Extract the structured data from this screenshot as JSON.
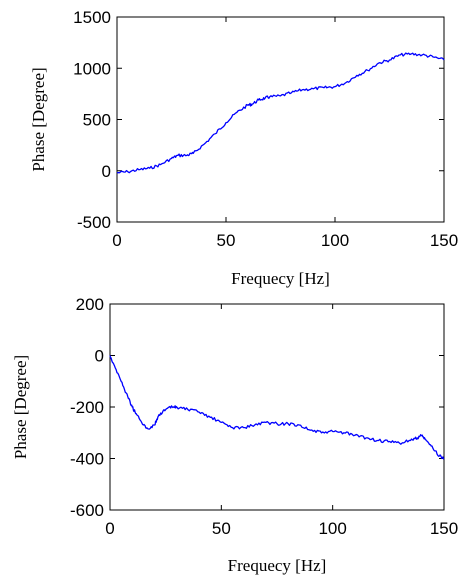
{
  "chart_data": [
    {
      "type": "line",
      "title": "",
      "xlabel": "Frequecy [Hz]",
      "ylabel": "Phase [Degree]",
      "xlim": [
        0,
        150
      ],
      "ylim": [
        -500,
        1500
      ],
      "xticks": [
        "0",
        "50",
        "100",
        "150"
      ],
      "yticks": [
        "1500",
        "1000",
        "500",
        "0",
        "-500"
      ],
      "grid": false,
      "series": [
        {
          "color": "#0000ff",
          "x": [
            0,
            5,
            10,
            15,
            20,
            25,
            28,
            32,
            35,
            40,
            45,
            50,
            55,
            60,
            62,
            65,
            68,
            70,
            75,
            80,
            85,
            90,
            95,
            100,
            105,
            110,
            115,
            120,
            125,
            130,
            135,
            140,
            145,
            150
          ],
          "y": [
            -20,
            -10,
            10,
            25,
            60,
            120,
            150,
            150,
            170,
            260,
            360,
            470,
            570,
            640,
            650,
            690,
            710,
            720,
            730,
            760,
            790,
            800,
            810,
            820,
            860,
            930,
            980,
            1050,
            1080,
            1130,
            1140,
            1130,
            1110,
            1080
          ]
        }
      ]
    },
    {
      "type": "line",
      "title": "",
      "xlabel": "Frequecy [Hz]",
      "ylabel": "Phase [Degree]",
      "xlim": [
        0,
        150
      ],
      "ylim": [
        -600,
        200
      ],
      "xticks": [
        "0",
        "50",
        "100",
        "150"
      ],
      "yticks": [
        "200",
        "0",
        "-200",
        "-400",
        "-600"
      ],
      "grid": false,
      "series": [
        {
          "color": "#0000ff",
          "x": [
            0,
            2,
            5,
            8,
            10,
            12,
            15,
            17,
            20,
            22,
            25,
            28,
            30,
            35,
            40,
            45,
            50,
            55,
            60,
            65,
            70,
            75,
            80,
            85,
            90,
            95,
            100,
            105,
            110,
            115,
            120,
            125,
            130,
            135,
            138,
            140,
            142,
            145,
            148,
            150
          ],
          "y": [
            0,
            -40,
            -100,
            -160,
            -200,
            -230,
            -270,
            -285,
            -270,
            -230,
            -210,
            -200,
            -200,
            -210,
            -220,
            -240,
            -260,
            -280,
            -280,
            -270,
            -260,
            -265,
            -265,
            -270,
            -290,
            -300,
            -295,
            -300,
            -310,
            -320,
            -330,
            -335,
            -340,
            -330,
            -320,
            -310,
            -330,
            -360,
            -390,
            -400
          ]
        }
      ]
    }
  ]
}
